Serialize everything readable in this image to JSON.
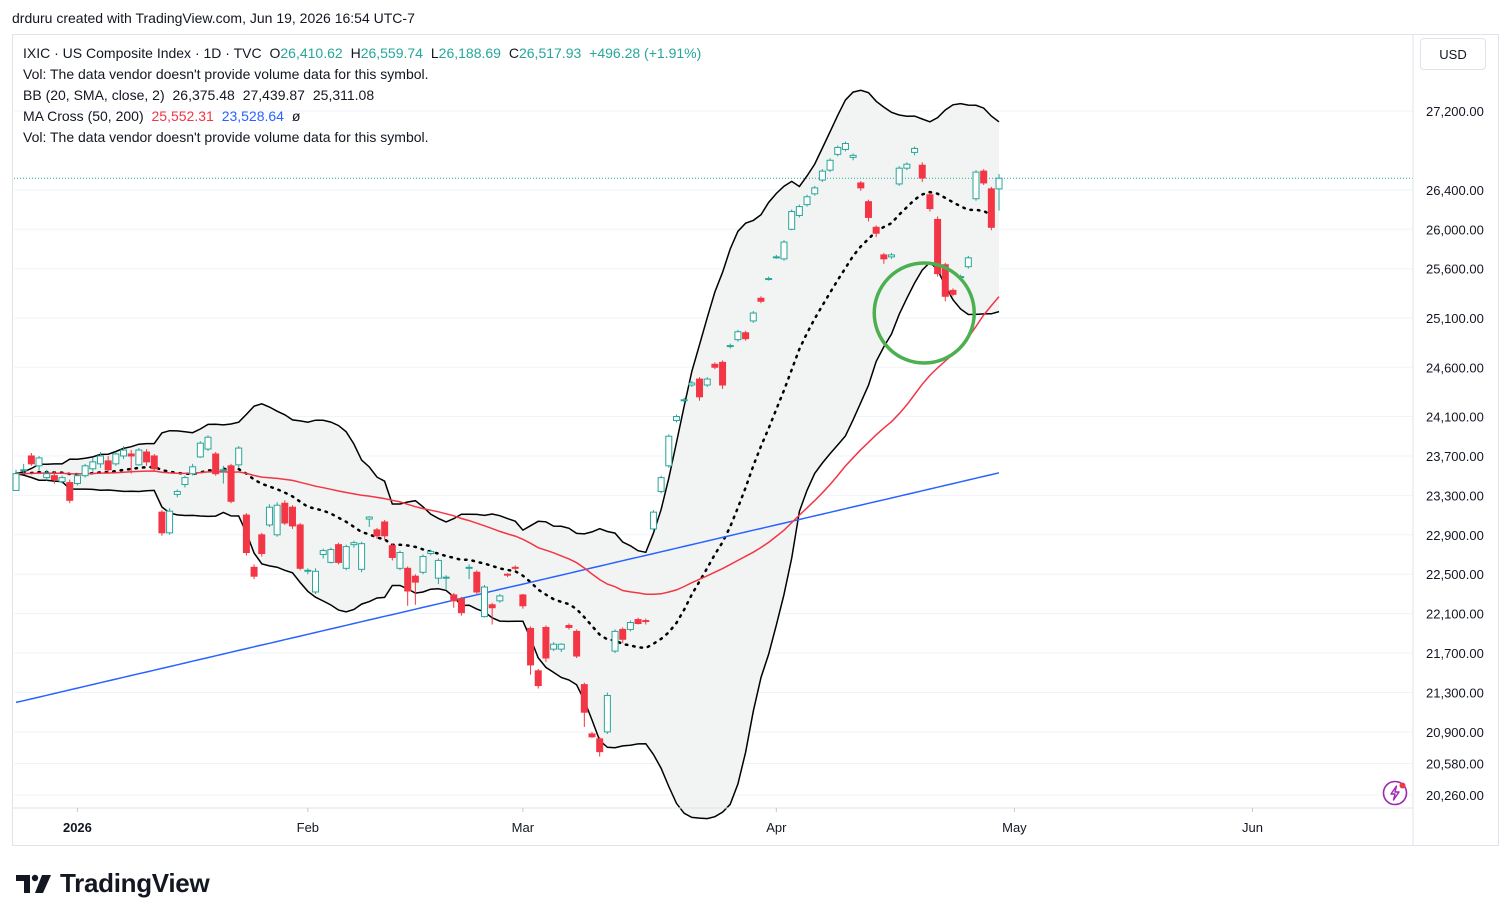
{
  "attribution": "drduru created with TradingView.com, Jun 19, 2026 16:54 UTC-7",
  "legend": {
    "symbol": "IXIC · US Composite Index · 1D · TVC",
    "o_label": "O",
    "o": "26,410.62",
    "h_label": "H",
    "h": "26,559.74",
    "l_label": "L",
    "l": "26,188.69",
    "c_label": "C",
    "c": "26,517.93",
    "change": "+496.28 (+1.91%)",
    "vol1": "Vol: The data vendor doesn't provide volume data for this symbol.",
    "bb_label": "BB (20, SMA, close, 2)",
    "bb_mid": "26,375.48",
    "bb_upper": "27,439.87",
    "bb_lower": "25,311.08",
    "ma_label": "MA Cross (50, 200)",
    "ma50": "25,552.31",
    "ma200": "23,528.64",
    "ma_extra": "ø",
    "vol2": "Vol: The data vendor doesn't provide volume data for this symbol."
  },
  "currency": "USD",
  "brand": "TradingView",
  "colors": {
    "up": "#26a69a",
    "down": "#f23645",
    "up_fill": "#ffffff",
    "ma50": "#f23645",
    "ma200": "#2962ff",
    "bb_fill": "#f2f4f3",
    "bb_line": "#000000",
    "circle": "#4caf50",
    "grid": "#f0f3fa"
  },
  "chart_data": {
    "type": "candlestick",
    "symbol": "IXIC",
    "interval": "1D",
    "ylim": [
      20100,
      27700
    ],
    "y_ticks": [
      "27,200.00",
      "26,400.00",
      "26,000.00",
      "25,600.00",
      "25,100.00",
      "24,600.00",
      "24,100.00",
      "23,700.00",
      "23,300.00",
      "22,900.00",
      "22,500.00",
      "22,100.00",
      "21,700.00",
      "21,300.00",
      "20,900.00",
      "20,580.00",
      "20,260.00"
    ],
    "x_ticks": [
      "2026",
      "Feb",
      "Mar",
      "Apr",
      "May",
      "Jun"
    ],
    "last_close": 26517.93,
    "annotation": "circle at 50-day MA support",
    "candles": [
      [
        23350,
        23520,
        23360,
        23560
      ],
      [
        23550,
        23560,
        23520,
        23620
      ],
      [
        23700,
        23620,
        23600,
        23730
      ],
      [
        23600,
        23680,
        23550,
        23700
      ],
      [
        23480,
        23520,
        23450,
        23560
      ],
      [
        23500,
        23460,
        23420,
        23540
      ],
      [
        23440,
        23480,
        23420,
        23500
      ],
      [
        23430,
        23250,
        23220,
        23460
      ],
      [
        23420,
        23500,
        23400,
        23520
      ],
      [
        23500,
        23600,
        23480,
        23620
      ],
      [
        23570,
        23640,
        23540,
        23680
      ],
      [
        23620,
        23700,
        23580,
        23740
      ],
      [
        23650,
        23560,
        23520,
        23700
      ],
      [
        23620,
        23720,
        23600,
        23740
      ],
      [
        23700,
        23760,
        23670,
        23800
      ],
      [
        23720,
        23700,
        23520,
        23760
      ],
      [
        23610,
        23760,
        23600,
        23780
      ],
      [
        23740,
        23640,
        23600,
        23770
      ],
      [
        23700,
        23570,
        23540,
        23720
      ],
      [
        23130,
        22920,
        22890,
        23150
      ],
      [
        22920,
        23140,
        22900,
        23170
      ],
      [
        23310,
        23340,
        23280,
        23360
      ],
      [
        23410,
        23480,
        23380,
        23500
      ],
      [
        23520,
        23590,
        23500,
        23620
      ],
      [
        23690,
        23830,
        23680,
        23850
      ],
      [
        23770,
        23890,
        23750,
        23910
      ],
      [
        23720,
        23520,
        23500,
        23740
      ],
      [
        23560,
        23560,
        23420,
        23600
      ],
      [
        23600,
        23240,
        23220,
        23620
      ],
      [
        23610,
        23780,
        23580,
        23800
      ],
      [
        23100,
        22720,
        22690,
        23120
      ],
      [
        22570,
        22480,
        22450,
        22600
      ],
      [
        22900,
        22710,
        22680,
        22920
      ],
      [
        23000,
        23180,
        22980,
        23210
      ],
      [
        22900,
        23200,
        22880,
        23230
      ],
      [
        23220,
        23020,
        23000,
        23250
      ],
      [
        23180,
        22990,
        22960,
        23200
      ],
      [
        23000,
        22560,
        22540,
        23020
      ],
      [
        22540,
        22540,
        22500,
        22560
      ],
      [
        22320,
        22530,
        22300,
        22560
      ],
      [
        22700,
        22740,
        22660,
        22760
      ],
      [
        22620,
        22750,
        22610,
        22770
      ],
      [
        22800,
        22620,
        22600,
        22820
      ],
      [
        22560,
        22780,
        22540,
        22800
      ],
      [
        22800,
        22820,
        22770,
        22840
      ],
      [
        22550,
        22810,
        22520,
        22830
      ],
      [
        23060,
        23080,
        22980,
        23090
      ],
      [
        22950,
        22890,
        22860,
        22970
      ],
      [
        23030,
        22890,
        22850,
        23050
      ],
      [
        22790,
        22670,
        22640,
        22810
      ],
      [
        22560,
        22720,
        22540,
        22740
      ],
      [
        22560,
        22330,
        22180,
        22580
      ],
      [
        22480,
        22420,
        22190,
        22500
      ],
      [
        22520,
        22680,
        22500,
        22700
      ],
      [
        22710,
        22730,
        22690,
        22750
      ],
      [
        22460,
        22640,
        22400,
        22660
      ],
      [
        22460,
        22470,
        22350,
        22490
      ],
      [
        22290,
        22230,
        22160,
        22310
      ],
      [
        22250,
        22110,
        22080,
        22270
      ],
      [
        22570,
        22570,
        22450,
        22600
      ],
      [
        22520,
        22320,
        22300,
        22540
      ],
      [
        22070,
        22370,
        22060,
        22390
      ],
      [
        22190,
        22160,
        21990,
        22210
      ],
      [
        22230,
        22280,
        22210,
        22300
      ],
      [
        22500,
        22490,
        22470,
        22510
      ],
      [
        22570,
        22560,
        22540,
        22590
      ],
      [
        22290,
        22180,
        22150,
        22300
      ],
      [
        21950,
        21580,
        21480,
        21970
      ],
      [
        21520,
        21370,
        21340,
        21540
      ],
      [
        21960,
        21650,
        21610,
        21980
      ],
      [
        21740,
        21790,
        21720,
        21810
      ],
      [
        21740,
        21790,
        21710,
        21800
      ],
      [
        21980,
        21960,
        21940,
        22000
      ],
      [
        21920,
        21670,
        21650,
        21940
      ],
      [
        21380,
        21100,
        20950,
        21400
      ],
      [
        20880,
        20850,
        20840,
        20900
      ],
      [
        20830,
        20700,
        20650,
        20850
      ],
      [
        20900,
        21270,
        20880,
        21300
      ],
      [
        21720,
        21920,
        21700,
        21940
      ],
      [
        21940,
        21840,
        21800,
        21960
      ],
      [
        21940,
        22010,
        21920,
        22030
      ],
      [
        22040,
        22000,
        21990,
        22060
      ],
      [
        22030,
        22020,
        21990,
        22050
      ],
      [
        22960,
        23130,
        22940,
        23150
      ],
      [
        23340,
        23480,
        23320,
        23500
      ],
      [
        23600,
        23900,
        23580,
        23920
      ],
      [
        24060,
        24100,
        24040,
        24120
      ],
      [
        24260,
        24270,
        24240,
        24290
      ],
      [
        24420,
        24440,
        24400,
        24460
      ],
      [
        24480,
        24300,
        24260,
        24500
      ],
      [
        24420,
        24480,
        24400,
        24500
      ],
      [
        24630,
        24600,
        24580,
        24650
      ],
      [
        24650,
        24420,
        24380,
        24670
      ],
      [
        24820,
        24820,
        24790,
        24840
      ],
      [
        24880,
        24960,
        24860,
        24980
      ],
      [
        24950,
        24890,
        24870,
        24970
      ],
      [
        25070,
        25150,
        25050,
        25170
      ],
      [
        25300,
        25270,
        25250,
        25320
      ],
      [
        25500,
        25500,
        25480,
        25520
      ],
      [
        25720,
        25720,
        25700,
        25740
      ],
      [
        25700,
        25870,
        25680,
        25890
      ],
      [
        26000,
        26180,
        25990,
        26200
      ],
      [
        26140,
        26230,
        26120,
        26250
      ],
      [
        26250,
        26330,
        26230,
        26350
      ],
      [
        26360,
        26420,
        26340,
        26440
      ],
      [
        26500,
        26590,
        26480,
        26610
      ],
      [
        26600,
        26700,
        26580,
        26720
      ],
      [
        26760,
        26830,
        26740,
        26850
      ],
      [
        26810,
        26870,
        26790,
        26890
      ],
      [
        26730,
        26750,
        26700,
        26770
      ],
      [
        26470,
        26420,
        26390,
        26490
      ],
      [
        26280,
        26120,
        26080,
        26300
      ],
      [
        26020,
        25960,
        25920,
        26040
      ],
      [
        25740,
        25700,
        25650,
        25760
      ],
      [
        25720,
        25740,
        25700,
        25760
      ],
      [
        26460,
        26620,
        26440,
        26640
      ],
      [
        26620,
        26660,
        26600,
        26680
      ],
      [
        26780,
        26820,
        26750,
        26840
      ],
      [
        26650,
        26520,
        26480,
        26680
      ],
      [
        26350,
        26210,
        26180,
        26370
      ],
      [
        26100,
        25550,
        25520,
        26130
      ],
      [
        25640,
        25320,
        25270,
        25660
      ],
      [
        25380,
        25340,
        25320,
        25400
      ],
      [
        25520,
        25520,
        25500,
        25540
      ],
      [
        25620,
        25710,
        25600,
        25730
      ],
      [
        26310,
        26580,
        26290,
        26600
      ],
      [
        26590,
        26470,
        26450,
        26610
      ],
      [
        26410,
        26020,
        25990,
        26430
      ],
      [
        26410,
        26518,
        26189,
        26560
      ]
    ]
  }
}
